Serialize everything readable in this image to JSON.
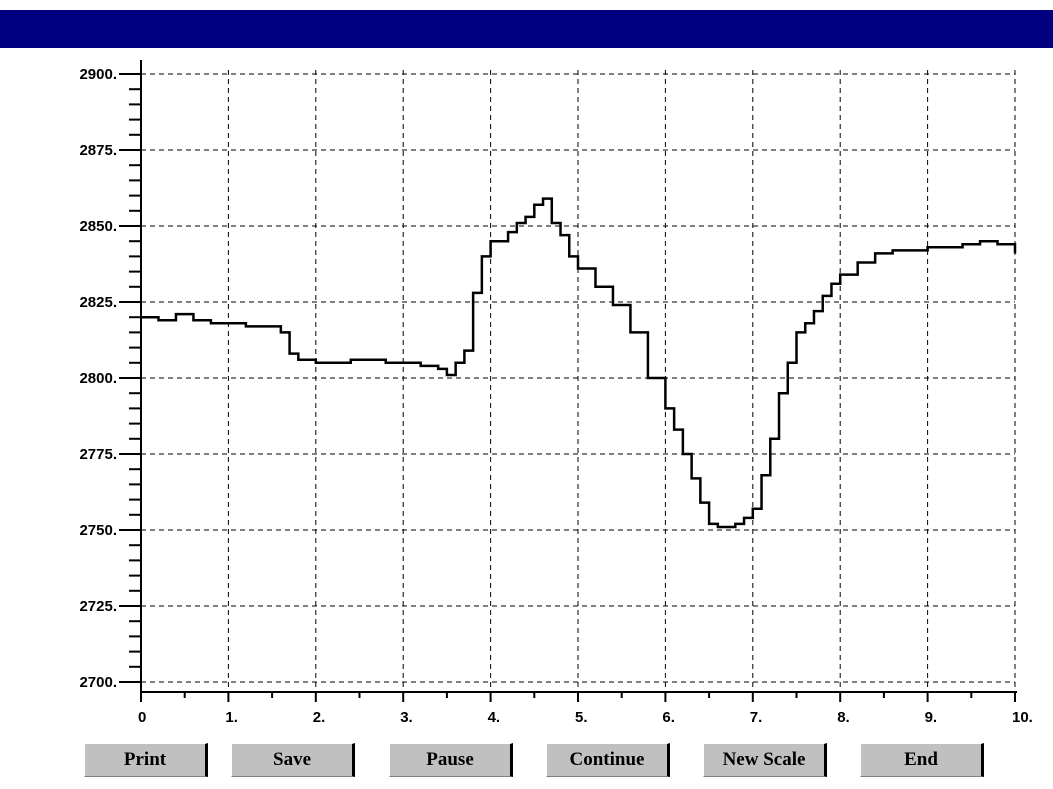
{
  "window": {
    "title": ""
  },
  "colors": {
    "titlebar": "#000080",
    "button_face": "#c0c0c0",
    "trace": "#000000",
    "grid": "#000000"
  },
  "buttons": {
    "print": "Print",
    "save": "Save",
    "pause": "Pause",
    "continue": "Continue",
    "new_scale": "New Scale",
    "end": "End"
  },
  "chart_data": {
    "type": "line",
    "title": "",
    "xlabel": "",
    "ylabel": "",
    "xlim": [
      0,
      10
    ],
    "ylim": [
      2700,
      2900
    ],
    "grid": true,
    "grid_style": "dashed",
    "x_ticks": [
      0,
      1,
      2,
      3,
      4,
      5,
      6,
      7,
      8,
      9,
      10
    ],
    "x_tick_labels": [
      "0",
      "1.",
      "2.",
      "3.",
      "4.",
      "5.",
      "6.",
      "7.",
      "8.",
      "9.",
      "10."
    ],
    "y_ticks": [
      2700,
      2725,
      2750,
      2775,
      2800,
      2825,
      2850,
      2875,
      2900
    ],
    "y_tick_labels": [
      "2700.",
      "2725.",
      "2750.",
      "2775.",
      "2800.",
      "2825.",
      "2850.",
      "2875.",
      "2900."
    ],
    "series": [
      {
        "step": true,
        "x": [
          0,
          0.2,
          0.4,
          0.6,
          0.8,
          1.0,
          1.2,
          1.4,
          1.6,
          1.7,
          1.8,
          2.0,
          2.2,
          2.4,
          2.6,
          2.8,
          3.0,
          3.2,
          3.4,
          3.5,
          3.6,
          3.7,
          3.8,
          3.9,
          4.0,
          4.1,
          4.2,
          4.3,
          4.4,
          4.5,
          4.6,
          4.7,
          4.8,
          4.9,
          5.0,
          5.2,
          5.4,
          5.6,
          5.8,
          6.0,
          6.1,
          6.2,
          6.3,
          6.4,
          6.5,
          6.6,
          6.7,
          6.8,
          6.9,
          7.0,
          7.1,
          7.2,
          7.3,
          7.4,
          7.5,
          7.6,
          7.7,
          7.8,
          7.9,
          8.0,
          8.2,
          8.4,
          8.6,
          8.8,
          9.0,
          9.2,
          9.4,
          9.6,
          9.8,
          10.0
        ],
        "y": [
          2820,
          2819,
          2821,
          2819,
          2818,
          2818,
          2817,
          2817,
          2815,
          2808,
          2806,
          2805,
          2805,
          2806,
          2806,
          2805,
          2805,
          2804,
          2803,
          2801,
          2805,
          2809,
          2828,
          2840,
          2845,
          2845,
          2848,
          2851,
          2853,
          2857,
          2859,
          2851,
          2847,
          2840,
          2836,
          2830,
          2824,
          2815,
          2800,
          2790,
          2783,
          2775,
          2767,
          2759,
          2752,
          2751,
          2751,
          2752,
          2754,
          2757,
          2768,
          2780,
          2795,
          2805,
          2815,
          2818,
          2822,
          2827,
          2831,
          2834,
          2838,
          2841,
          2842,
          2842,
          2843,
          2843,
          2844,
          2845,
          2844,
          2841
        ]
      }
    ]
  }
}
